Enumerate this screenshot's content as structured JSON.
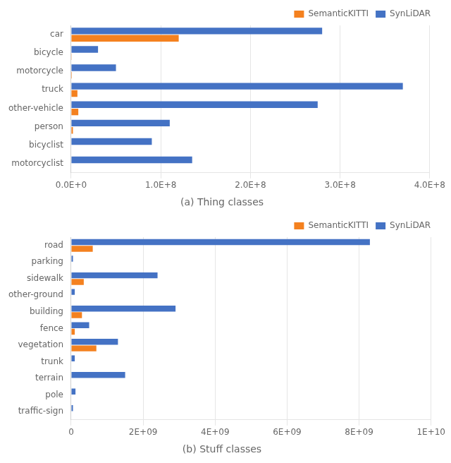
{
  "chart_data": [
    {
      "type": "bar",
      "orientation": "horizontal",
      "title": "(a) Thing classes",
      "categories": [
        "car",
        "bicycle",
        "motorcycle",
        "truck",
        "other-vehicle",
        "person",
        "bicyclist",
        "motorcyclist"
      ],
      "series": [
        {
          "name": "SemanticKITTI",
          "color": "#f4811f",
          "values": [
            120000000,
            600000,
            800000,
            7000000,
            8000000,
            2000000,
            0,
            0
          ]
        },
        {
          "name": "SynLiDAR",
          "color": "#4472c4",
          "values": [
            280000000,
            30000000,
            50000000,
            370000000,
            275000000,
            110000000,
            90000000,
            135000000
          ]
        }
      ],
      "xlim": [
        0,
        400000000
      ],
      "xticks": [
        {
          "value": 0,
          "label": "0.0E+0"
        },
        {
          "value": 100000000,
          "label": "1.0E+8"
        },
        {
          "value": 200000000,
          "label": "2.0E+8"
        },
        {
          "value": 300000000,
          "label": "3.0E+8"
        },
        {
          "value": 400000000,
          "label": "4.0E+8"
        }
      ],
      "grid": true,
      "legend": "upper right"
    },
    {
      "type": "bar",
      "orientation": "horizontal",
      "title": "(b) Stuff classes",
      "categories": [
        "road",
        "parking",
        "sidewalk",
        "other-ground",
        "building",
        "fence",
        "vegetation",
        "trunk",
        "terrain",
        "pole",
        "traffic-sign"
      ],
      "series": [
        {
          "name": "SemanticKITTI",
          "color": "#f4811f",
          "values": [
            600000000,
            0,
            350000000,
            0,
            300000000,
            100000000,
            700000000,
            0,
            0,
            0,
            0
          ]
        },
        {
          "name": "SynLiDAR",
          "color": "#4472c4",
          "values": [
            8300000000,
            50000000,
            2400000000,
            100000000,
            2900000000,
            500000000,
            1300000000,
            100000000,
            1500000000,
            120000000,
            50000000
          ]
        }
      ],
      "xlim": [
        0,
        10000000000
      ],
      "xticks": [
        0,
        {
          "value": 2000000000,
          "label": "2E+09"
        },
        {
          "value": 4000000000,
          "label": "4E+09"
        },
        {
          "value": 6000000000,
          "label": "6E+09"
        },
        {
          "value": 8000000000,
          "label": "8E+09"
        },
        {
          "value": 10000000000,
          "label": "1E+10"
        }
      ],
      "grid": true,
      "legend": "upper right"
    }
  ]
}
